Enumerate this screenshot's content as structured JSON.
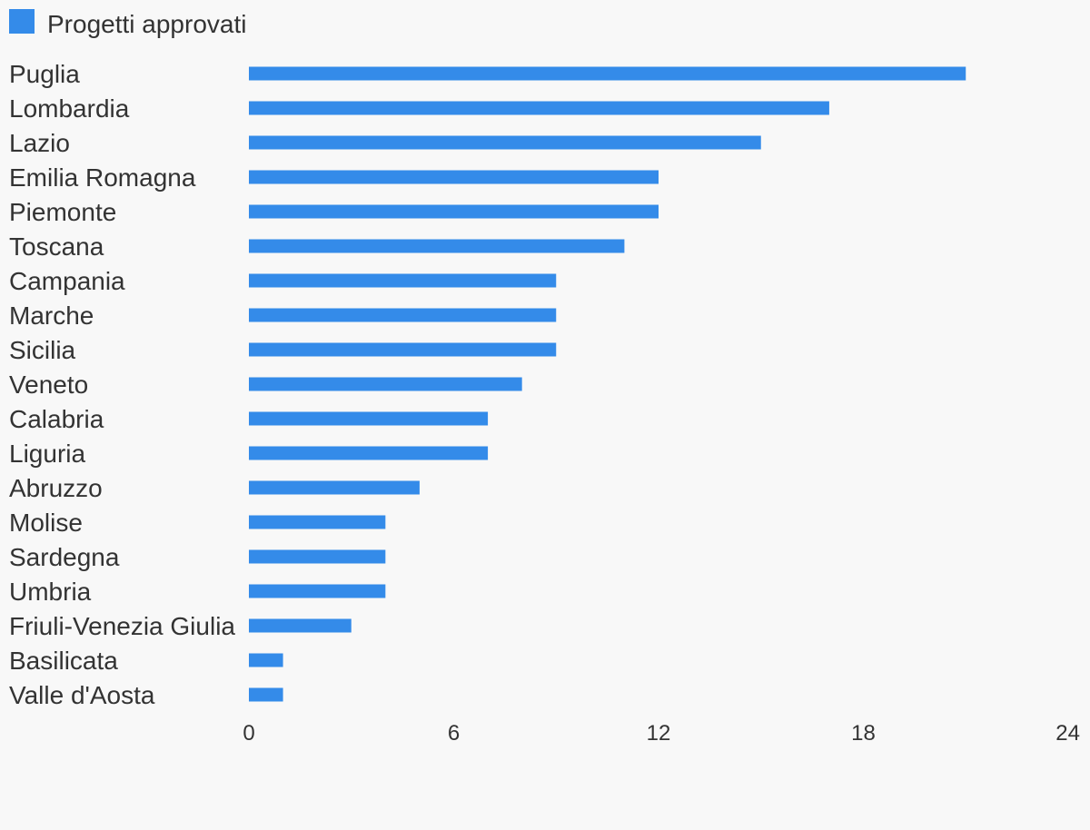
{
  "chart_data": {
    "type": "bar",
    "orientation": "horizontal",
    "legend": [
      {
        "name": "Progetti approvati",
        "color": "#348be9"
      }
    ],
    "legend_position": "top-left",
    "categories": [
      "Puglia",
      "Lombardia",
      "Lazio",
      "Emilia Romagna",
      "Piemonte",
      "Toscana",
      "Campania",
      "Marche",
      "Sicilia",
      "Veneto",
      "Calabria",
      "Liguria",
      "Abruzzo",
      "Molise",
      "Sardegna",
      "Umbria",
      "Friuli-Venezia Giulia",
      "Basilicata",
      "Valle d'Aosta"
    ],
    "series": [
      {
        "name": "Progetti approvati",
        "values": [
          21,
          17,
          15,
          12,
          12,
          11,
          9,
          9,
          9,
          8,
          7,
          7,
          5,
          4,
          4,
          4,
          3,
          1,
          1
        ]
      }
    ],
    "xlim": [
      0,
      24
    ],
    "xticks": [
      "0",
      "6",
      "12",
      "18",
      "24"
    ],
    "grid": false,
    "bar_color": "#348be9"
  }
}
